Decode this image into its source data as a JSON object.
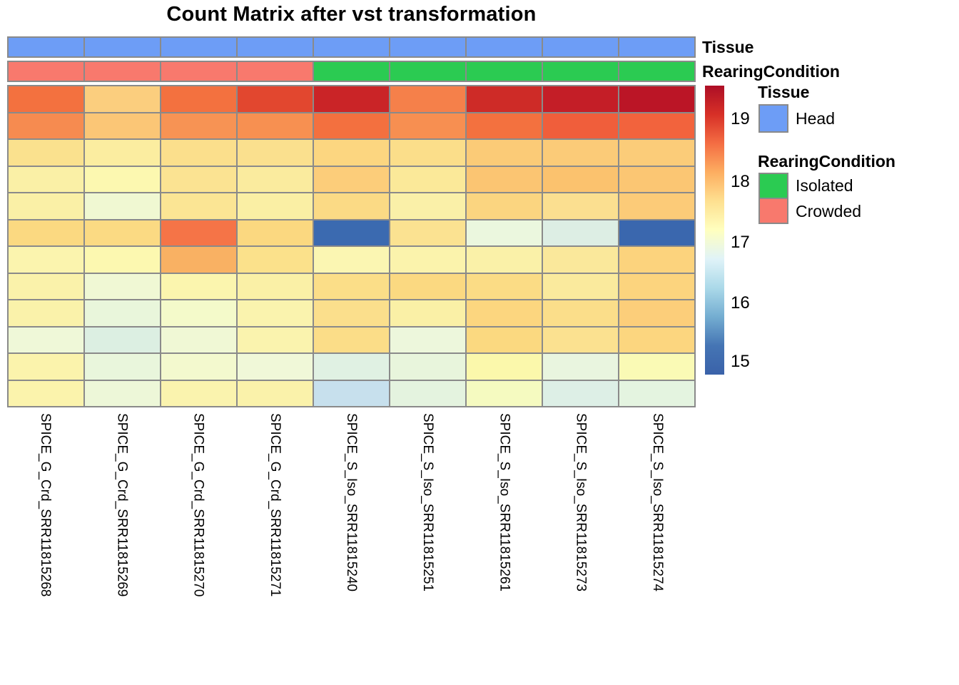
{
  "title": "Count Matrix after vst transformation",
  "colors": {
    "tissue_blue": "#6D9DF6",
    "rearing_crowded_salmon": "#F8796D",
    "rearing_isolated_green": "#2BCB52",
    "cell_border_gray": "#8A8A8A"
  },
  "annotations": {
    "tissue": {
      "label": "Tissue",
      "cells": [
        "#6D9DF6",
        "#6D9DF6",
        "#6D9DF6",
        "#6D9DF6",
        "#6D9DF6",
        "#6D9DF6",
        "#6D9DF6",
        "#6D9DF6",
        "#6D9DF6"
      ]
    },
    "rearing": {
      "label": "RearingCondition",
      "cells": [
        "#F8796D",
        "#F8796D",
        "#F8796D",
        "#F8796D",
        "#2BCB52",
        "#2BCB52",
        "#2BCB52",
        "#2BCB52",
        "#2BCB52"
      ]
    }
  },
  "legend": {
    "tissue": {
      "title": "Tissue",
      "items": [
        {
          "label": "Head",
          "color": "#6D9DF6"
        }
      ]
    },
    "rearing": {
      "title": "RearingCondition",
      "items": [
        {
          "label": "Isolated",
          "color": "#2BCB52"
        },
        {
          "label": "Crowded",
          "color": "#F8796D"
        }
      ]
    }
  },
  "colorbar": {
    "gradient_stops": [
      "#AD0E26",
      "#D73027",
      "#F46D43",
      "#FDAE61",
      "#FEE090",
      "#FFFFBF",
      "#E0F3F8",
      "#ABD9E9",
      "#74ADD1",
      "#4575B4",
      "#3A62A9"
    ],
    "ticks": [
      {
        "label": "19",
        "pct": 11.6
      },
      {
        "label": "18",
        "pct": 33.3
      },
      {
        "label": "17",
        "pct": 54.3
      },
      {
        "label": "16",
        "pct": 75.3
      },
      {
        "label": "15",
        "pct": 95.6
      }
    ]
  },
  "chart_data": {
    "type": "heatmap",
    "title": "Count Matrix after vst transformation",
    "palette": "RdYlBu reversed (blue=low, red=high)",
    "value_range": [
      15,
      19.5
    ],
    "colorbar_ticks": [
      19,
      18,
      17,
      16,
      15
    ],
    "row_count": 12,
    "row_labels_shown": false,
    "columns": [
      "SPICE_G_Crd_SRR11815268",
      "SPICE_G_Crd_SRR11815269",
      "SPICE_G_Crd_SRR11815270",
      "SPICE_G_Crd_SRR11815271",
      "SPICE_S_Iso_SRR11815240",
      "SPICE_S_Iso_SRR11815251",
      "SPICE_S_Iso_SRR11815261",
      "SPICE_S_Iso_SRR11815273",
      "SPICE_S_Iso_SRR11815274"
    ],
    "col_annotations": {
      "Tissue": [
        "Head",
        "Head",
        "Head",
        "Head",
        "Head",
        "Head",
        "Head",
        "Head",
        "Head"
      ],
      "RearingCondition": [
        "Crowded",
        "Crowded",
        "Crowded",
        "Crowded",
        "Isolated",
        "Isolated",
        "Isolated",
        "Isolated",
        "Isolated"
      ]
    },
    "values_est": [
      [
        18.9,
        18.2,
        18.9,
        19.1,
        19.4,
        18.8,
        19.3,
        19.4,
        19.5
      ],
      [
        18.75,
        18.25,
        18.7,
        18.7,
        18.9,
        18.7,
        18.9,
        18.95,
        18.95
      ],
      [
        17.85,
        17.6,
        17.85,
        17.85,
        18.0,
        17.85,
        18.2,
        18.2,
        18.2
      ],
      [
        17.5,
        17.3,
        17.75,
        17.6,
        18.15,
        17.65,
        18.25,
        18.3,
        18.25
      ],
      [
        17.5,
        17.0,
        17.75,
        17.55,
        17.9,
        17.5,
        18.0,
        17.85,
        18.15
      ],
      [
        17.95,
        17.95,
        18.85,
        17.95,
        15.1,
        17.8,
        16.85,
        16.6,
        15.1
      ],
      [
        17.4,
        17.3,
        18.45,
        17.8,
        17.35,
        17.45,
        17.5,
        17.65,
        18.05
      ],
      [
        17.45,
        17.0,
        17.4,
        17.5,
        17.85,
        17.95,
        17.9,
        17.6,
        18.05
      ],
      [
        17.45,
        16.85,
        17.1,
        17.45,
        17.85,
        17.5,
        18.0,
        17.85,
        18.15
      ],
      [
        16.95,
        16.6,
        17.0,
        17.45,
        17.9,
        16.9,
        17.95,
        17.8,
        18.0
      ],
      [
        17.45,
        16.85,
        17.05,
        17.0,
        16.7,
        16.85,
        17.35,
        16.8,
        17.25
      ],
      [
        17.45,
        16.9,
        17.45,
        17.45,
        16.3,
        16.75,
        17.15,
        16.6,
        16.75
      ]
    ],
    "cell_colors": [
      [
        "#F3713F",
        "#FBCE7E",
        "#F3713F",
        "#E2472F",
        "#CA2427",
        "#F5804A",
        "#CE2B27",
        "#C41E27",
        "#BB1526"
      ],
      [
        "#F68B50",
        "#FBC676",
        "#F79354",
        "#F79051",
        "#F3703F",
        "#F78F51",
        "#F3713F",
        "#F05E3B",
        "#F2633D"
      ],
      [
        "#FAE18E",
        "#FBEDA0",
        "#FBDF8C",
        "#FAE08E",
        "#FCD680",
        "#FBDE8A",
        "#FBCB77",
        "#FBCB78",
        "#FBCC79"
      ],
      [
        "#FAF0A6",
        "#FCF8B0",
        "#FBE392",
        "#FAEB9E",
        "#FCCD7A",
        "#FBE999",
        "#FBC572",
        "#FBC26E",
        "#FBC673"
      ],
      [
        "#FAF0A6",
        "#F0F8D2",
        "#FBE594",
        "#FAEFA4",
        "#FBDA85",
        "#FAF0A8",
        "#FBD580",
        "#FBDF90",
        "#FCCB78"
      ],
      [
        "#FBD981",
        "#FBDA83",
        "#F57447",
        "#FBD880",
        "#3B6AB0",
        "#FBE291",
        "#EBF7DE",
        "#DDEEE4",
        "#3A67AE"
      ],
      [
        "#FBF4AE",
        "#FCF8B0",
        "#F9B163",
        "#FBE18B",
        "#FBF6B2",
        "#FBF3AC",
        "#FAF1A8",
        "#FAE89B",
        "#FCD37D"
      ],
      [
        "#FAF2AA",
        "#F0F8D4",
        "#FBF5AE",
        "#FAF0A6",
        "#FBDE88",
        "#FBD981",
        "#FBDC85",
        "#FAEA9D",
        "#FCD47E"
      ],
      [
        "#FAF2AA",
        "#E9F6DB",
        "#F4FACA",
        "#FAF3AE",
        "#FBDF8C",
        "#FAF0A6",
        "#FCD67F",
        "#FBDE8A",
        "#FCCE7A"
      ],
      [
        "#EFF8D8",
        "#DCEFE2",
        "#F0F8D5",
        "#FAF3AE",
        "#FBDD88",
        "#EDF7DC",
        "#FBD980",
        "#FBE190",
        "#FCD67F"
      ],
      [
        "#FBF3AC",
        "#E9F6DC",
        "#F3F9CE",
        "#F0F8D8",
        "#E0F1E3",
        "#E8F5DC",
        "#FBF8AB",
        "#E9F5DF",
        "#FAFAB5"
      ],
      [
        "#FBF3AC",
        "#EDF7D8",
        "#FAF3AE",
        "#FAF2AA",
        "#C7E0ED",
        "#E4F3DF",
        "#F5FAC0",
        "#DDEFE6",
        "#E4F4E0"
      ]
    ]
  }
}
